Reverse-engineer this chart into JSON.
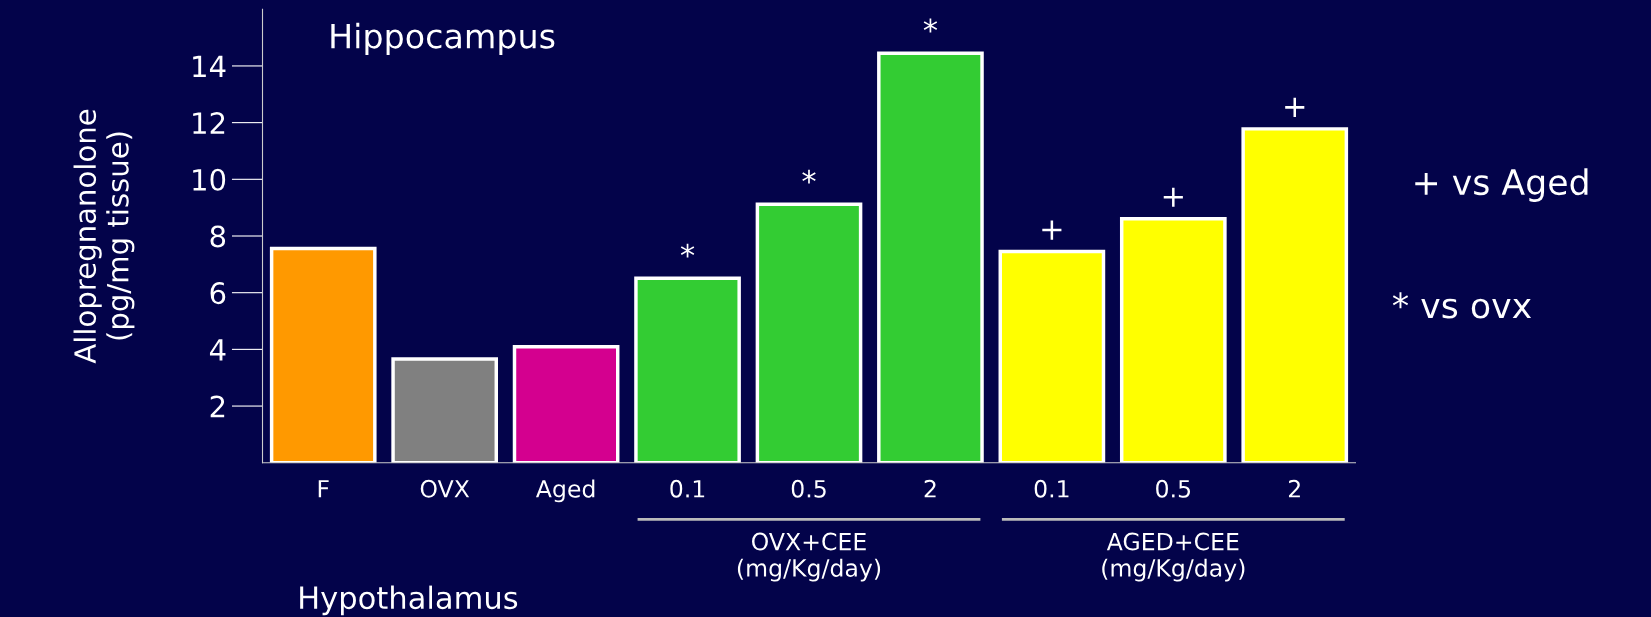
{
  "chart_data": {
    "type": "bar",
    "title": "Hippocampus",
    "ylabel": "Allopregnanolone\n(pg/mg tissue)",
    "categories": [
      "F",
      "OVX",
      "Aged",
      "0.1",
      "0.5",
      "2",
      "0.1",
      "0.5",
      "2"
    ],
    "values": [
      7.56,
      3.66,
      4.09,
      6.51,
      9.12,
      14.45,
      7.45,
      8.61,
      11.78
    ],
    "colors": [
      "#ff9900",
      "#808080",
      "#d4008f",
      "#33cc33",
      "#33cc33",
      "#33cc33",
      "#ffff00",
      "#ffff00",
      "#ffff00"
    ],
    "value_labels": [
      null,
      null,
      null,
      "*",
      "*",
      "*",
      "+",
      "+",
      "+"
    ],
    "ylim": [
      0,
      16
    ],
    "yticks": [
      2,
      4,
      6,
      8,
      10,
      12,
      14
    ],
    "grid": false,
    "annotations": [
      "OVX+CEE\n(mg/Kg/day)",
      "AGED+CEE\n(mg/Kg/day)",
      "+ vs Aged",
      "* vs ovx",
      "Hypothalamus"
    ]
  }
}
